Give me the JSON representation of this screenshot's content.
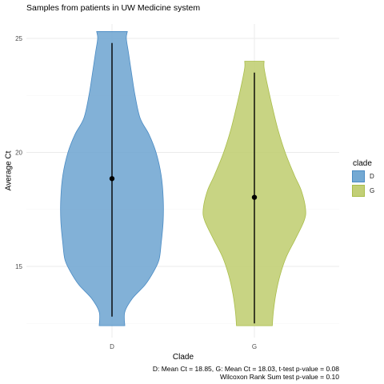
{
  "chart_data": {
    "type": "violin",
    "title": "Samples from patients in UW Medicine system",
    "xlabel": "Clade",
    "ylabel": "Average Ct",
    "categories": [
      "D",
      "G"
    ],
    "yticks": [
      15,
      20,
      25
    ],
    "ylim": [
      11.7,
      26.2
    ],
    "grid": true,
    "legend": {
      "title": "clade",
      "position": "right",
      "entries": [
        "D",
        "G"
      ]
    },
    "colors": {
      "D": "#74a9d3",
      "G": "#c2cf76",
      "D_stroke": "#4a8bc4",
      "G_stroke": "#a9bd4a"
    },
    "series": [
      {
        "name": "D",
        "mean": 18.85,
        "range": [
          12.8,
          24.8
        ],
        "density": [
          [
            12.4,
            0.25
          ],
          [
            13.0,
            0.25
          ],
          [
            13.6,
            0.4
          ],
          [
            14.2,
            0.65
          ],
          [
            14.8,
            0.82
          ],
          [
            15.3,
            0.92
          ],
          [
            16.0,
            0.96
          ],
          [
            17.0,
            1.0
          ],
          [
            18.0,
            1.0
          ],
          [
            19.0,
            0.96
          ],
          [
            20.0,
            0.86
          ],
          [
            20.8,
            0.72
          ],
          [
            21.5,
            0.55
          ],
          [
            22.5,
            0.45
          ],
          [
            23.5,
            0.38
          ],
          [
            24.4,
            0.32
          ],
          [
            25.0,
            0.28
          ],
          [
            25.3,
            0.3
          ]
        ]
      },
      {
        "name": "G",
        "mean": 18.03,
        "range": [
          12.5,
          23.5
        ],
        "density": [
          [
            12.4,
            0.35
          ],
          [
            13.0,
            0.37
          ],
          [
            13.8,
            0.42
          ],
          [
            14.6,
            0.5
          ],
          [
            15.4,
            0.62
          ],
          [
            16.2,
            0.8
          ],
          [
            17.0,
            0.97
          ],
          [
            17.5,
            1.0
          ],
          [
            18.3,
            0.92
          ],
          [
            19.0,
            0.78
          ],
          [
            20.0,
            0.6
          ],
          [
            21.0,
            0.46
          ],
          [
            22.0,
            0.35
          ],
          [
            23.0,
            0.25
          ],
          [
            23.7,
            0.19
          ],
          [
            24.0,
            0.19
          ]
        ]
      }
    ],
    "caption": [
      "D: Mean Ct = 18.85, G: Mean Ct = 18.03,  t-test p-value = 0.08",
      "Wilcoxon Rank Sum test p-value = 0.10"
    ]
  }
}
